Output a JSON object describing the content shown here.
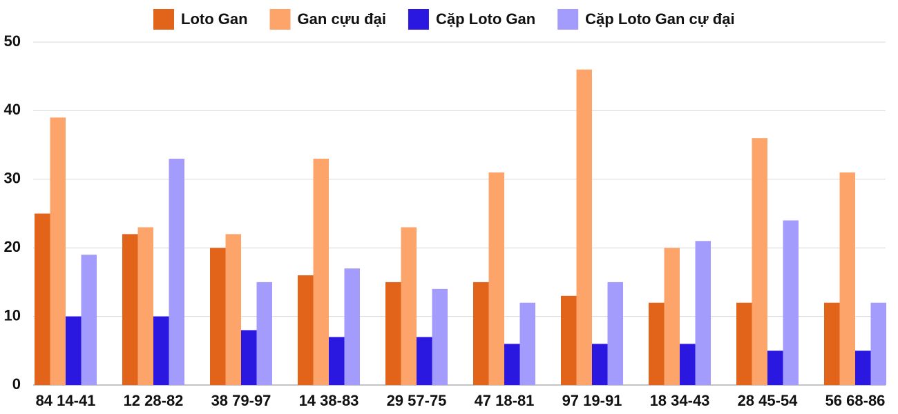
{
  "chart_data": {
    "type": "bar",
    "categories": [
      "84 14-41",
      "12 28-82",
      "38 79-97",
      "14 38-83",
      "29 57-75",
      "47 18-81",
      "97 19-91",
      "18 34-43",
      "28 45-54",
      "56 68-86"
    ],
    "series": [
      {
        "name": "Loto Gan",
        "color": "#e2631a",
        "values": [
          25,
          22,
          20,
          16,
          15,
          15,
          13,
          12,
          12,
          12
        ]
      },
      {
        "name": "Gan cựu đại",
        "color": "#fda46b",
        "values": [
          39,
          23,
          22,
          33,
          23,
          31,
          46,
          20,
          36,
          31
        ]
      },
      {
        "name": "Cặp Loto Gan",
        "color": "#2a17e0",
        "values": [
          10,
          10,
          8,
          7,
          7,
          6,
          6,
          6,
          5,
          5
        ]
      },
      {
        "name": "Cặp Loto Gan cự đại",
        "color": "#a39cfd",
        "values": [
          19,
          33,
          15,
          17,
          14,
          12,
          15,
          21,
          24,
          12
        ]
      }
    ],
    "ylim": [
      0,
      50
    ],
    "yticks": [
      0,
      10,
      20,
      30,
      40,
      50
    ],
    "grid": true,
    "legend": "top"
  }
}
